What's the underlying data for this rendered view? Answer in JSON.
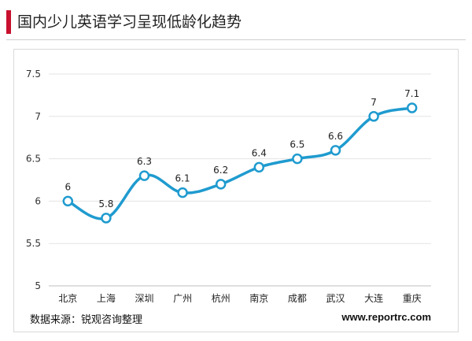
{
  "header": {
    "title": "国内少儿英语学习呈现低龄化趋势",
    "accent_color": "#c8102e"
  },
  "footer": {
    "source": "数据来源：锐观咨询整理",
    "website": "www.reportrc.com"
  },
  "chart_data": {
    "type": "line",
    "categories": [
      "北京",
      "上海",
      "深圳",
      "广州",
      "杭州",
      "南京",
      "成都",
      "武汉",
      "大连",
      "重庆"
    ],
    "values": [
      6,
      5.8,
      6.3,
      6.1,
      6.2,
      6.4,
      6.5,
      6.6,
      7,
      7.1
    ],
    "value_labels": [
      "6",
      "5.8",
      "6.3",
      "6.1",
      "6.2",
      "6.4",
      "6.5",
      "6.6",
      "7",
      "7.1"
    ],
    "ylim": [
      5,
      7.5
    ],
    "yticks": [
      "5",
      "5.5",
      "6",
      "6.5",
      "7",
      "7.5"
    ],
    "ytick_values": [
      5,
      5.5,
      6,
      6.5,
      7,
      7.5
    ],
    "grid": true,
    "line_color": "#1f9bcf",
    "marker": "hollow-circle"
  }
}
